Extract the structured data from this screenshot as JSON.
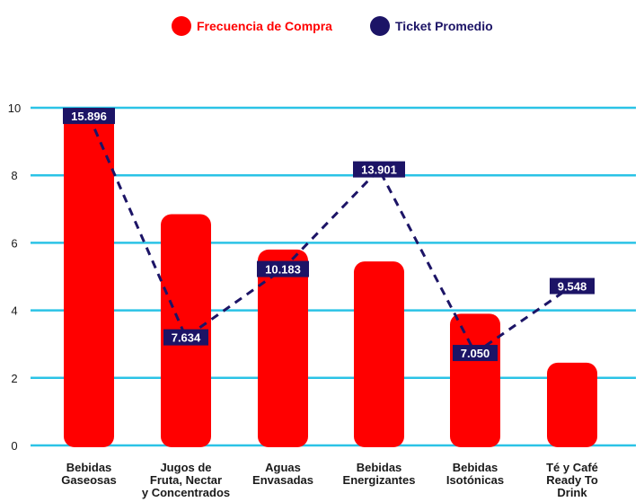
{
  "chart_data": {
    "type": "bar",
    "categories": [
      [
        "Bebidas",
        "Gaseosas"
      ],
      [
        "Jugos de",
        "Fruta, Nectar",
        "y Concentrados"
      ],
      [
        "Aguas",
        "Envasadas"
      ],
      [
        "Bebidas",
        "Energizantes"
      ],
      [
        "Bebidas",
        "Isotónicas"
      ],
      [
        "Té y Café",
        "Ready To",
        "Drink"
      ]
    ],
    "series": [
      {
        "name": "Frecuencia de Compra",
        "type": "bar",
        "values": [
          10,
          6.85,
          5.8,
          5.45,
          3.9,
          2.45
        ]
      },
      {
        "name": "Ticket Promedio",
        "type": "line",
        "values": [
          15.896,
          7.634,
          10.183,
          13.901,
          7.05,
          9.548
        ],
        "labels": [
          "15.896",
          "7.634",
          "10.183",
          "13.901",
          "7.050",
          "9.548"
        ]
      }
    ],
    "ylim": [
      0,
      10
    ],
    "yticks": [
      0,
      2,
      4,
      6,
      8,
      10
    ],
    "line_axis_range": [
      3.6,
      16.2
    ],
    "legend": "top-center",
    "grid": true,
    "colors": {
      "bar": "#ff0000",
      "line": "#1c1466",
      "grid": "#2bc3e6",
      "text": "#1a1a1a"
    }
  }
}
